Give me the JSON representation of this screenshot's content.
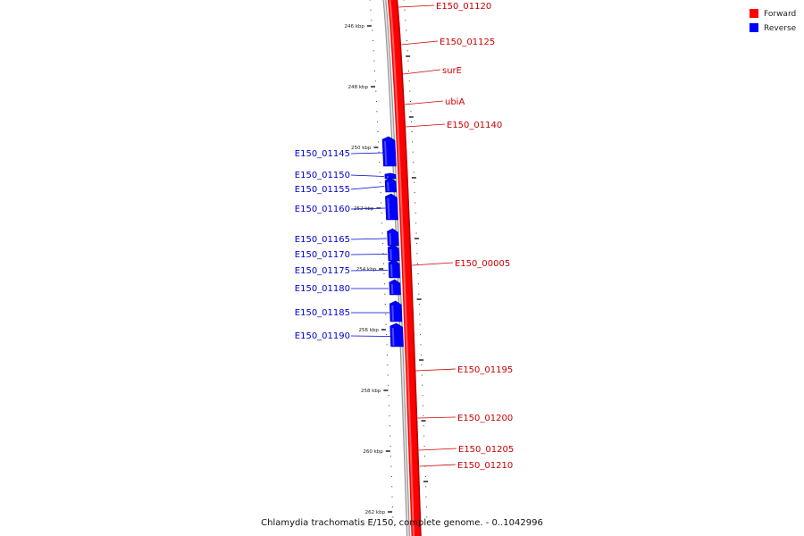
{
  "colors": {
    "forward": "#ff0000",
    "reverse": "#0000ff",
    "forward_label": "#cc0000",
    "reverse_label": "#0000cc"
  },
  "legend": [
    {
      "label": "Forward",
      "color": "#ff0000"
    },
    {
      "label": "Reverse",
      "color": "#0000ff"
    }
  ],
  "caption": "Chlamydia trachomatis E/150, complete genome. - 0..1042996",
  "ticks": [
    "246 kbp",
    "248 kbp",
    "250 kbp",
    "252 kbp",
    "254 kbp",
    "256 kbp",
    "258 kbp",
    "260 kbp",
    "262 kbp"
  ],
  "forward_genes": [
    "E150_01120",
    "E150_01125",
    "surE",
    "ubiA",
    "E150_01140",
    "E150_00005",
    "E150_01195",
    "E150_01200",
    "E150_01205",
    "E150_01210"
  ],
  "reverse_genes": [
    "E150_01145",
    "E150_01150",
    "E150_01155",
    "E150_01160",
    "E150_01165",
    "E150_01170",
    "E150_01175",
    "E150_01180",
    "E150_01185",
    "E150_01190"
  ]
}
